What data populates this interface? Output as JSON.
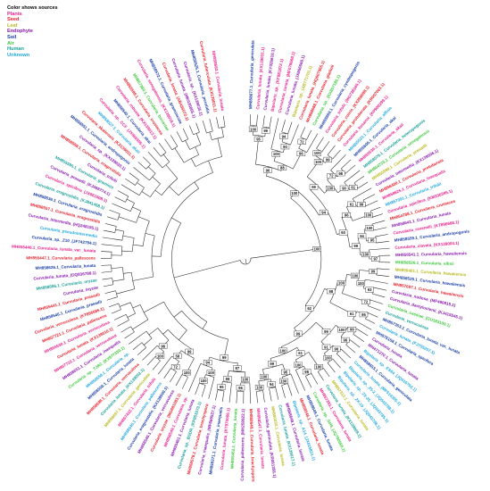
{
  "legend": {
    "title": "Color shows sources",
    "items": [
      {
        "label": "Plants",
        "color": "#e8208c"
      },
      {
        "label": "Seed",
        "color": "#e8202c"
      },
      {
        "label": "Leaf",
        "color": "#b8b81c"
      },
      {
        "label": "Endophyte",
        "color": "#8a1ab0"
      },
      {
        "label": "Soil",
        "color": "#1a3ea8"
      },
      {
        "label": "Air",
        "color": "#3cc83c"
      },
      {
        "label": "Human",
        "color": "#18a098"
      },
      {
        "label": "Unknown",
        "color": "#20a8e0"
      }
    ]
  },
  "leaves": [
    {
      "label": "MH858677.1_Curvularia_geniculata",
      "src": 4
    },
    {
      "label": "Curvularia_lunata_(KX139031.1)",
      "src": 0
    },
    {
      "label": "Curvularia_lunata_(KY026610.1)",
      "src": 3
    },
    {
      "label": "Bipolaris_sp._(KF881872.1)",
      "src": 0
    },
    {
      "label": "Curvularia_lunata_(MF078668.1)",
      "src": 0
    },
    {
      "label": "Curvularia_lunata_(JX966566.1)",
      "src": 3
    },
    {
      "label": "Bipolaris_sp._(AB771701.1)",
      "src": 2
    },
    {
      "label": "Curvularia_lunata_(HQ607965.1)",
      "src": 1
    },
    {
      "label": "MH858688.1_Curvularia_gladioli",
      "src": 1
    },
    {
      "label": "Curvularia_sp._(KX857180.1)",
      "src": 5
    },
    {
      "label": "MH855560.1_Curvularia_cymbopogonis",
      "src": 4
    },
    {
      "label": "Curvularia_trifolii_(MG738340.1)",
      "src": 0
    },
    {
      "label": "Curvularia_coicis_(KX288698.1)",
      "src": 1
    },
    {
      "label": "Curvularia_protuberata_(KR007063.1)",
      "src": 1
    },
    {
      "label": "Curvularia_kusanoi_(KP900299.1)",
      "src": 0
    },
    {
      "label": "MH855523.1_Curvularia_affinis",
      "src": 7
    },
    {
      "label": "MH855600.1_Curvularia_akai",
      "src": 4
    },
    {
      "label": "MH855539.1_Curvularia_akaii",
      "src": 0
    },
    {
      "label": "MH858576.1_Curvularia_heteropogonis",
      "src": 6
    },
    {
      "label": "MH854725.1_Curvularia_senegalensis",
      "src": 5
    },
    {
      "label": "MH855599.1_Curvularia_prasadii",
      "src": 2
    },
    {
      "label": "Curvularia_intermedia_(KX139006.1)",
      "src": 3
    },
    {
      "label": "MH856400.1_Curvularia_protuberata",
      "src": 1
    },
    {
      "label": "MH858625.1_Curvularia_inaequalis",
      "src": 0
    },
    {
      "label": "MH857391.1_Curvularia_trifolii",
      "src": 7
    },
    {
      "label": "Curvularia_spicifera_(KM230395.1)",
      "src": 0
    },
    {
      "label": "MH854788.1_Curvularia_crustacea",
      "src": 1
    },
    {
      "label": "MH858641.1_Curvularia_lunata",
      "src": 3
    },
    {
      "label": "Curvularia_ravenelii_(KT896688.1)",
      "src": 0
    },
    {
      "label": "MH858559.1_Curvularia_andropogonis",
      "src": 4
    },
    {
      "label": "Curvularia_clavata_(KX139004.1)",
      "src": 0
    },
    {
      "label": "MH858541.1_Curvularia_hawaiiensis",
      "src": 3
    },
    {
      "label": "MH858526.1_Curvularia_ellisii",
      "src": 5
    },
    {
      "label": "MH856401.1_Curvularia_hawaiiensis",
      "src": 2
    },
    {
      "label": "MH858525.1_Curvularia_hawaiiensis",
      "src": 4
    },
    {
      "label": "MH857697.1_Curvularia_hawaiiensis",
      "src": 1
    },
    {
      "label": "Curvularia_nodosa_(MF490815.1)",
      "src": 3
    },
    {
      "label": "Curvularia_dactyloctenii_(KJ415545.1)",
      "src": 3
    },
    {
      "label": "Curvularia_cassiae_(GU183100.1)",
      "src": 5
    },
    {
      "label": "Curvularia_verruculosa",
      "src": 6
    },
    {
      "label": "MH857353.1_Curvularia_lunata_var._lunata",
      "src": 4
    },
    {
      "label": "Curvularia_lunata_(FJ755257.1)",
      "src": 7
    },
    {
      "label": "MH875158.1_Curvularia_spicifera",
      "src": 4
    },
    {
      "label": "Curvularia_lunata",
      "src": 3
    },
    {
      "label": "MH471270.1_Curvularia_lunata",
      "src": 3
    },
    {
      "label": "Bipolaris_sp._ES64_(JQ016792.1)",
      "src": 7
    },
    {
      "label": "MH858653.1_Curvularia_geniculata",
      "src": 4
    },
    {
      "label": "Curvularia_lunata_(MF510355.1)",
      "src": 7
    },
    {
      "label": "Bipolaris_sp._25-2_(JQ043788.1)",
      "src": 7
    },
    {
      "label": "Bipolaris_sp._2X-25_(JQ043785.1)",
      "src": 7
    },
    {
      "label": "Bipolaris_sp._2X-19_(JQ043786.1)",
      "src": 7
    },
    {
      "label": "MH857312.1_Curvularia_lunata",
      "src": 2
    },
    {
      "label": "Curvularia_lunata_(KX139009.1)",
      "src": 6
    },
    {
      "label": "MH857393.1_Curvularia_lunata",
      "src": 0
    },
    {
      "label": "Curvularia_sp._GH6_(JQ780566.1)",
      "src": 5
    },
    {
      "label": "MH858649.1_Curvularia_lunata",
      "src": 4
    },
    {
      "label": "MH858546.1_Curvularia_lunata",
      "src": 1
    },
    {
      "label": "Bipolaris_sp._A14_(JX015831.1)",
      "src": 7
    },
    {
      "label": "MH858648.1_Curvularia_lunata",
      "src": 3
    },
    {
      "label": "Curvularia_lunata_(KX139017.1)",
      "src": 6
    },
    {
      "label": "MH860033.1_Curvularia_lunata",
      "src": 2
    },
    {
      "label": "Curvularia_geniculata_(KR081356.1)",
      "src": 3
    },
    {
      "label": "MH858547.1_Curvularia_lunata",
      "src": 0
    },
    {
      "label": "MH858649.1_Curvularia_brachyspora",
      "src": 1
    },
    {
      "label": "Curvularia_pallescens_(MH259922.1)",
      "src": 3
    },
    {
      "label": "MH855462.1_Curvularia_lunata",
      "src": 5
    },
    {
      "label": "Curvularia_lunata_(KT970066.1)",
      "src": 0
    },
    {
      "label": "MH859371.1_Curvularia_inaequalis",
      "src": 4
    },
    {
      "label": "Curvularia_inaequalis_(MF669527.1)",
      "src": 3
    },
    {
      "label": "MH858578.1_Curvularia_brachyspora",
      "src": 1
    },
    {
      "label": "Curvularia_sp._BSDR_(KP851573.1)",
      "src": 6
    },
    {
      "label": "MH855461.1_Curvularia_lunata",
      "src": 3
    },
    {
      "label": "MH858549.1_Curvularia_sp.",
      "src": 0
    },
    {
      "label": "Curvularia_oryzae_(MG681083.1)",
      "src": 1
    },
    {
      "label": "MH858540.1_Curvularia_verruculosa",
      "src": 3
    },
    {
      "label": "Curvularia_eragrostidis_(KX139000.1)",
      "src": 4
    },
    {
      "label": "MH858545.1_Curvularia_pallescens",
      "src": 7
    },
    {
      "label": "MH857432.1_Curvularia_trifolii",
      "src": 0
    },
    {
      "label": "MH858657.1_Curvularia_geniculata",
      "src": 2
    },
    {
      "label": "Curvularia_lunata_(KX139002.1)",
      "src": 6
    },
    {
      "label": "MH858598.1_Curvularia_verruculosa",
      "src": 1
    },
    {
      "label": "MH858550.1_Curvularia_lunata",
      "src": 4
    },
    {
      "label": "MH858558.1_Curvularia_sp.",
      "src": 7
    },
    {
      "label": "Curvularia_sp._TJR2_(KX977330.1)",
      "src": 5
    },
    {
      "label": "MH858651.1_Curvularia_inaequalis",
      "src": 3
    },
    {
      "label": "MH857722.1_Curvularia_verruculosa",
      "src": 0
    },
    {
      "label": "Curvularia_lunata_(KX139010.1)",
      "src": 1
    },
    {
      "label": "MH855530.1_Curvularia_verruculosa",
      "src": 0
    },
    {
      "label": "MH857721.1_Curvularia_pallescens",
      "src": 1
    },
    {
      "label": "Curvularia_verruculosa_(KT896685.1)",
      "src": 1
    },
    {
      "label": "MH858546.1_Curvularia_prasadii",
      "src": 4
    },
    {
      "label": "MH855441.1_Curvularia_prasadii",
      "src": 1
    },
    {
      "label": "Curvularia_oryzae",
      "src": 3
    },
    {
      "label": "MH858596.1_Curvularia_oryzae",
      "src": 6
    },
    {
      "label": "Curvularia_lunata_(DQ836798.1)",
      "src": 3
    },
    {
      "label": "MH858626.1_Curvularia_lunata",
      "src": 4
    },
    {
      "label": "MH855447.1_Curvularia_pallescens",
      "src": 1
    },
    {
      "label": "MH855446.1_Curvularia_lunata_var._lunata",
      "src": 0
    },
    {
      "label": "Curvularia_sp._Z10_(JF742784.1)",
      "src": 4
    },
    {
      "label": "Curvularia_pseudointermedia",
      "src": 7
    },
    {
      "label": "Curvularia_intermedia_(HQ248195.1)",
      "src": 3
    },
    {
      "label": "MH858557.1_Curvularia_eragrostidis",
      "src": 1
    },
    {
      "label": "MH858536.1_Curvularia_eragrostidis",
      "src": 4
    },
    {
      "label": "Curvularia_eragrostidis_(KJ841458.1)",
      "src": 6
    },
    {
      "label": "Curvularia_spicifera_(JX861908.1)",
      "src": 0
    },
    {
      "label": "Curvularia_prasadii_(KJ469774.1)",
      "src": 3
    },
    {
      "label": "MH855595.1_Curvularia_graminis",
      "src": 6
    },
    {
      "label": "Curvularia_trifolii",
      "src": 3
    },
    {
      "label": "MH858559.1_Curvularia_eragrostidis",
      "src": 1
    },
    {
      "label": "Curvularia_sp._(KX139033.1)",
      "src": 3
    },
    {
      "label": "MH858551.1_Curvularia_andropogonis",
      "src": 4
    },
    {
      "label": "Curvularia_akaiiensis_(KX139031.1)",
      "src": 1
    },
    {
      "label": "MH858527.1_Curvularia_akaii",
      "src": 7
    },
    {
      "label": "Curvularia_sp._CCF_(JX966555.1)",
      "src": 0
    },
    {
      "label": "MH858540.1_Curvularia_akai",
      "src": 4
    },
    {
      "label": "Curvularia_robusta_(KX139013.1)",
      "src": 0
    },
    {
      "label": "MH855598.1_Curvularia_crustacea",
      "src": 1
    },
    {
      "label": "MH857380.1_Curvularia_borreriae",
      "src": 5
    },
    {
      "label": "Curvularia_senegalensis_(KX139016.1)",
      "src": 0
    },
    {
      "label": "MH858572.1_Curvularia_graminicola",
      "src": 4
    },
    {
      "label": "Curvularia_lunata_(AB436572.1)",
      "src": 1
    },
    {
      "label": "Curvularia_lunata_(MK026855.1)",
      "src": 3
    },
    {
      "label": "Curvularia_sp._(KX139035.1)",
      "src": 3
    },
    {
      "label": "MH855525.1_Curvularia_perotidis",
      "src": 4
    },
    {
      "label": "Curvularia_tuberculata_(KX139011.1)",
      "src": 1
    },
    {
      "label": "MH858683.1_Curvularia_lunata",
      "src": 0
    }
  ],
  "bootstrap": [
    "100",
    "99",
    "95",
    "94",
    "90",
    "100",
    "72",
    "96",
    "88",
    "96",
    "100",
    "99",
    "100",
    "98",
    "72",
    "61",
    "90",
    "100",
    "59",
    "99",
    "61",
    "100",
    "96",
    "100",
    "95",
    "94",
    "97",
    "100",
    "99",
    "60",
    "94",
    "100",
    "99",
    "93",
    "100",
    "100",
    "72",
    "100",
    "95",
    "61",
    "98",
    "99",
    "96",
    "100",
    "96",
    "100",
    "91",
    "99",
    "100",
    "98",
    "100",
    "61",
    "100",
    "95",
    "94",
    "100",
    "100",
    "99",
    "100",
    "99",
    "62",
    "100",
    "96",
    "100",
    "95",
    "99",
    "87",
    "100",
    "100",
    "94",
    "99",
    "100",
    "72",
    "58",
    "99",
    "100",
    "98"
  ]
}
